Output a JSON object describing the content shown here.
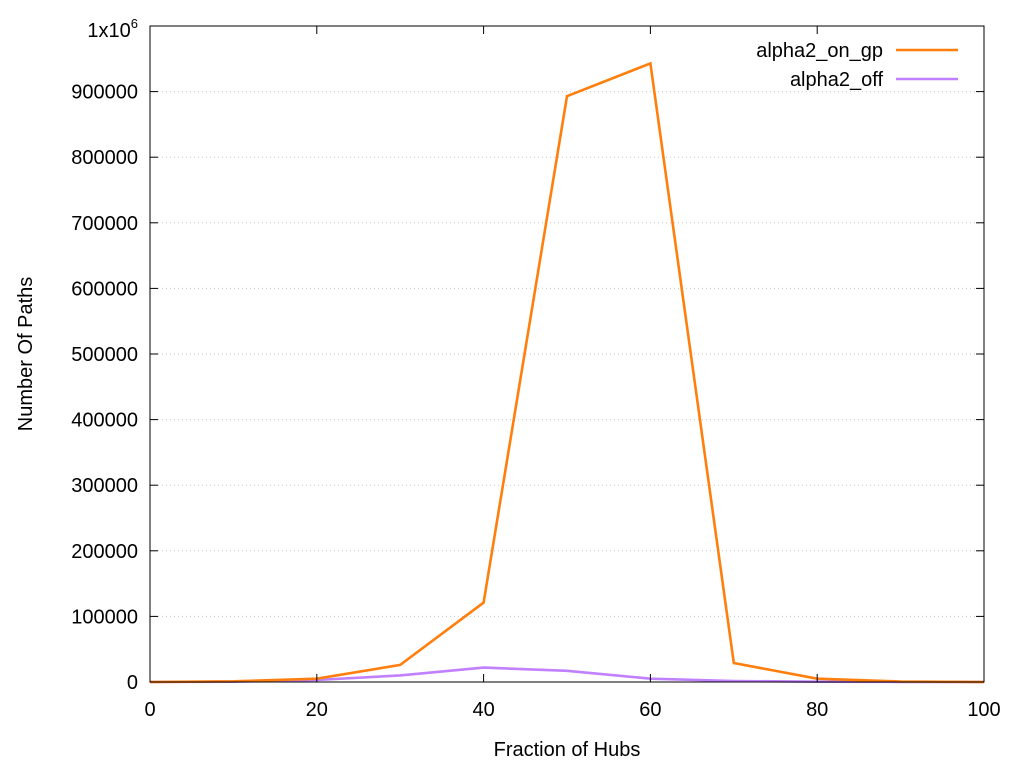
{
  "chart_data": {
    "type": "line",
    "xlabel": "Fraction of Hubs",
    "ylabel": "Number Of Paths",
    "xlim": [
      0,
      100
    ],
    "ylim": [
      0,
      1000000
    ],
    "x_ticks": [
      0,
      20,
      40,
      60,
      80,
      100
    ],
    "y_ticks": [
      0,
      100000,
      200000,
      300000,
      400000,
      500000,
      600000,
      700000,
      800000,
      900000
    ],
    "y_top_label": "1x10",
    "y_top_label_exponent": "6",
    "grid": "horizontal-dotted",
    "legend_position": "top-right",
    "x": [
      0,
      10,
      20,
      30,
      40,
      50,
      60,
      70,
      80,
      90,
      100
    ],
    "series": [
      {
        "name": "alpha2_on_gp",
        "color": "#ff7f0e",
        "values": [
          0,
          1000,
          5000,
          26000,
          121000,
          893000,
          943000,
          29000,
          5000,
          800,
          0
        ]
      },
      {
        "name": "alpha2_off",
        "color": "#c080ff",
        "values": [
          0,
          500,
          3000,
          10000,
          22000,
          17000,
          5000,
          1500,
          500,
          100,
          0
        ]
      }
    ]
  }
}
